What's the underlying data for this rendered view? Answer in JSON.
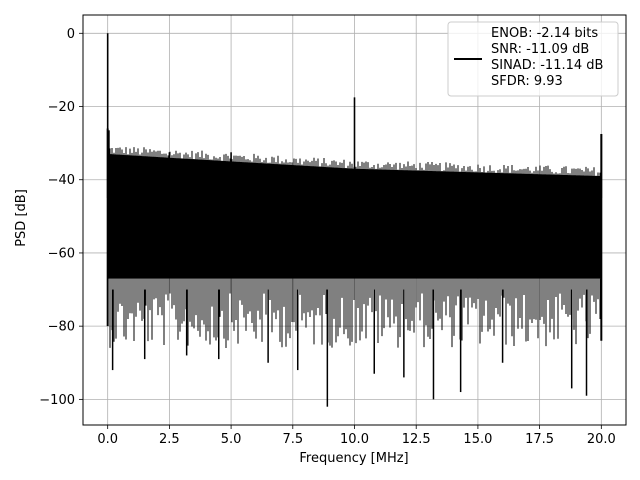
{
  "chart_data": {
    "type": "line",
    "xlabel": "Frequency [MHz]",
    "ylabel": "PSD [dB]",
    "xlim": [
      -1.0,
      21.0
    ],
    "ylim": [
      -107.0,
      5.0
    ],
    "x_ticks": [
      0.0,
      2.5,
      5.0,
      7.5,
      10.0,
      12.5,
      15.0,
      17.5,
      20.0
    ],
    "x_tick_labels": [
      "0.0",
      "2.5",
      "5.0",
      "7.5",
      "10.0",
      "12.5",
      "15.0",
      "17.5",
      "20.0"
    ],
    "y_ticks": [
      0,
      -20,
      -40,
      -60,
      -80,
      -100
    ],
    "y_tick_labels": [
      "0",
      "−20",
      "−40",
      "−60",
      "−80",
      "−100"
    ],
    "grid": true,
    "legend_position": "top-right",
    "line_color": "#000000",
    "series": [
      {
        "name": "ENOB: -2.14 bits\nSNR: -11.09 dB\nSINAD: -11.14 dB\nSFDR: 9.93",
        "description": "dense noise floor spectrum",
        "x_range": [
          0.0,
          20.0
        ],
        "noise_upper_envelope": [
          [
            0.1,
            -33
          ],
          [
            2.5,
            -34
          ],
          [
            5.0,
            -35
          ],
          [
            10.0,
            -37
          ],
          [
            15.0,
            -38
          ],
          [
            20.0,
            -39
          ]
        ],
        "noise_lower_envelope": [
          [
            0.1,
            -67
          ],
          [
            20.0,
            -67
          ]
        ],
        "peaks": [
          {
            "x": 0.0,
            "y": 0
          },
          {
            "x": 0.05,
            "y": -26.5
          },
          {
            "x": 10.0,
            "y": -17.5
          },
          {
            "x": 20.0,
            "y": -27.5
          },
          {
            "x": 2.5,
            "y": -32.5
          },
          {
            "x": 5.0,
            "y": -32.5
          }
        ],
        "dips": [
          {
            "x": 0.2,
            "y": -92
          },
          {
            "x": 1.5,
            "y": -89
          },
          {
            "x": 3.2,
            "y": -88
          },
          {
            "x": 4.5,
            "y": -89
          },
          {
            "x": 6.5,
            "y": -90
          },
          {
            "x": 7.7,
            "y": -92
          },
          {
            "x": 8.9,
            "y": -102
          },
          {
            "x": 10.8,
            "y": -93
          },
          {
            "x": 12.0,
            "y": -94
          },
          {
            "x": 13.2,
            "y": -100
          },
          {
            "x": 14.3,
            "y": -98
          },
          {
            "x": 16.0,
            "y": -90
          },
          {
            "x": 18.8,
            "y": -97
          },
          {
            "x": 19.4,
            "y": -99
          }
        ]
      }
    ]
  }
}
